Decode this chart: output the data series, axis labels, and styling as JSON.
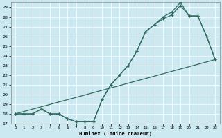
{
  "title": "",
  "xlabel": "Humidex (Indice chaleur)",
  "bg_color": "#cce8f0",
  "line_color": "#2e6b5e",
  "xlim": [
    -0.5,
    23.5
  ],
  "ylim": [
    17,
    29.5
  ],
  "xticks": [
    0,
    1,
    2,
    3,
    4,
    5,
    6,
    7,
    8,
    9,
    10,
    11,
    12,
    13,
    14,
    15,
    16,
    17,
    18,
    19,
    20,
    21,
    22,
    23
  ],
  "yticks": [
    17,
    18,
    19,
    20,
    21,
    22,
    23,
    24,
    25,
    26,
    27,
    28,
    29
  ],
  "line1_x": [
    0,
    1,
    2,
    3,
    4,
    5,
    6,
    7,
    8,
    9,
    10,
    11,
    12,
    13,
    14,
    15,
    16,
    17,
    18,
    19,
    20,
    21,
    22,
    23
  ],
  "line1_y": [
    18,
    18,
    18,
    18.5,
    18,
    18,
    17.5,
    17.2,
    17.2,
    17.2,
    19.5,
    21,
    22,
    23,
    24.5,
    26.5,
    27.2,
    27.8,
    28.2,
    29.2,
    28.1,
    28.1,
    26.0,
    23.6
  ],
  "line2_x": [
    0,
    1,
    2,
    3,
    4,
    5,
    6,
    7,
    8,
    9,
    10,
    11,
    12,
    13,
    14,
    15,
    16,
    17,
    18,
    19,
    20,
    21,
    22,
    23
  ],
  "line2_y": [
    18,
    18,
    18,
    18.5,
    18,
    18,
    17.5,
    17.2,
    17.2,
    17.2,
    19.5,
    21,
    22,
    23,
    24.5,
    26.5,
    27.2,
    28.0,
    28.5,
    29.5,
    28.1,
    28.1,
    26.0,
    23.6
  ],
  "line3_x": [
    0,
    23
  ],
  "line3_y": [
    18,
    23.6
  ],
  "grid_color": "#b0d0d8",
  "spine_color": "#888888"
}
